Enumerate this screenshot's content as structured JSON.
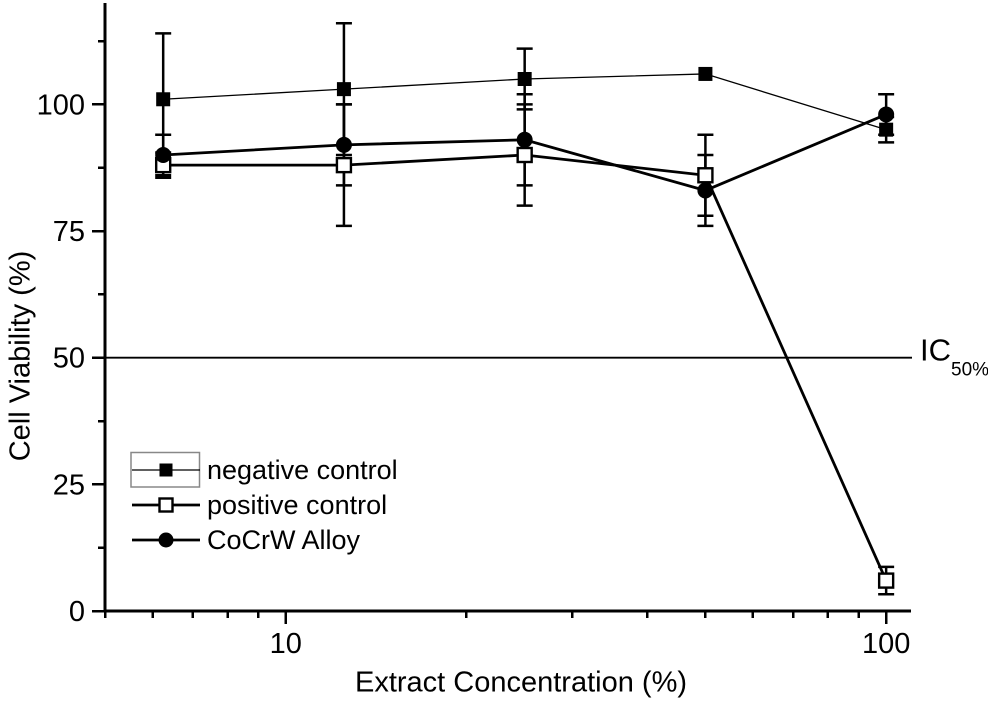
{
  "figure": {
    "background_color": "#ffffff",
    "ink_color": "#000000",
    "legend_box_color": "#888888"
  },
  "chart_data": {
    "type": "line",
    "title": "",
    "xlabel": "Extract Concentration (%)",
    "ylabel": "Cell Viability (%)",
    "x_scale": "log",
    "xlim": [
      5,
      110
    ],
    "ylim": [
      0,
      120
    ],
    "grid": false,
    "x_major_ticks": [
      10,
      100
    ],
    "x_major_tick_labels": [
      "10",
      "100"
    ],
    "x_minor_ticks": [
      5,
      6,
      7,
      8,
      9,
      20,
      30,
      40,
      50,
      60,
      70,
      80,
      90
    ],
    "y_major_ticks": [
      0,
      25,
      50,
      75,
      100
    ],
    "y_major_tick_labels": [
      "0",
      "25",
      "50",
      "75",
      "100"
    ],
    "y_minor_ticks": [
      12.5,
      37.5,
      62.5,
      87.5,
      112.5
    ],
    "x": [
      6.25,
      12.5,
      25,
      50,
      100
    ],
    "series": [
      {
        "name": "negative control",
        "marker": "filled-square",
        "line_style": "thin",
        "values": [
          101,
          103,
          105,
          106,
          95
        ],
        "errors": [
          13,
          13,
          6,
          0,
          2.5
        ]
      },
      {
        "name": "positive control",
        "marker": "open-square",
        "line_style": "thick",
        "values": [
          88,
          88,
          90,
          86,
          6
        ],
        "errors": [
          2.5,
          12,
          10,
          8,
          2.7
        ]
      },
      {
        "name": "CoCrW Alloy",
        "marker": "filled-circle",
        "line_style": "thick",
        "values": [
          90,
          92,
          93,
          83,
          98
        ],
        "errors": [
          4,
          8,
          9,
          7,
          4
        ]
      }
    ],
    "reference_line": {
      "value": 50,
      "label_main": "IC",
      "label_subscript": "50%"
    },
    "legend": {
      "position": "inside-bottom-left",
      "first_entry_boxed": true,
      "entries": [
        "negative control",
        "positive control",
        "CoCrW Alloy"
      ]
    }
  }
}
